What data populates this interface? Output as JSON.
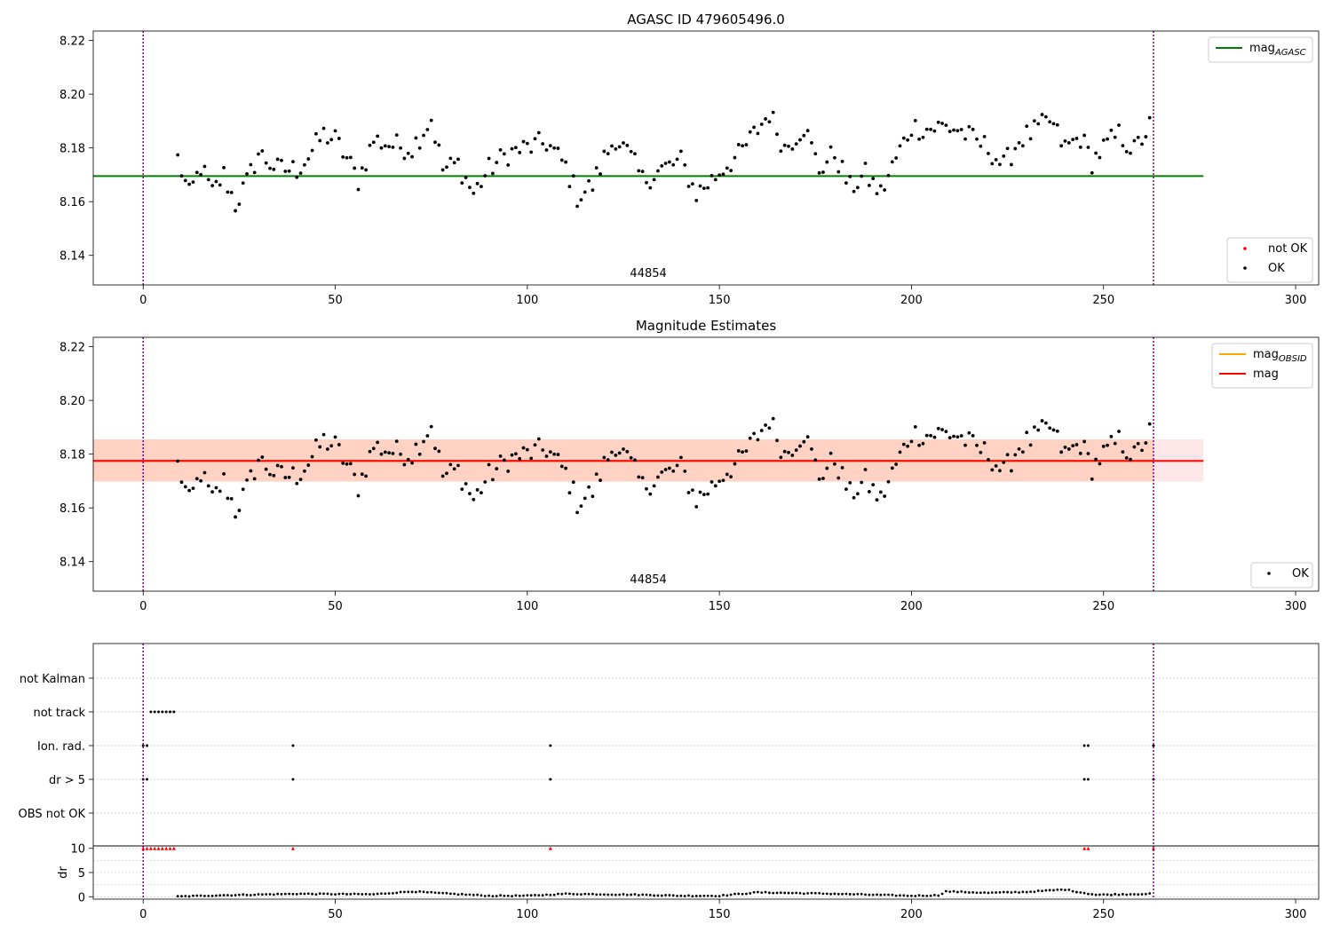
{
  "chart_data": [
    {
      "type": "scatter",
      "title": "AGASC ID 479605496.0",
      "xlim": [
        -13,
        306
      ],
      "ylim": [
        8.129,
        8.2235
      ],
      "x_ticks": [
        0,
        50,
        100,
        150,
        200,
        250,
        300
      ],
      "y_ticks": [
        8.14,
        8.16,
        8.18,
        8.2,
        8.22
      ],
      "y_tick_labels": [
        "8.14",
        "8.16",
        "8.18",
        "8.20",
        "8.22"
      ],
      "annotation": "44854",
      "vlines": [
        0,
        263
      ],
      "hline": {
        "name": "mag_AGASC",
        "value": 8.1695,
        "x_range": [
          -13,
          276
        ],
        "color": "#008000"
      },
      "legend_upper_right": [
        {
          "label": "mag",
          "sub": "AGASC",
          "color": "#008000"
        }
      ],
      "legend_lower_right": [
        {
          "label": "not OK",
          "color": "#ff0000"
        },
        {
          "label": "OK",
          "color": "#000000"
        }
      ],
      "series": [
        {
          "name": "OK",
          "color": "#000000",
          "x_range": [
            9,
            262
          ],
          "anchors": [
            [
              9,
              8.176
            ],
            [
              12,
              8.162
            ],
            [
              15,
              8.173
            ],
            [
              18,
              8.163
            ],
            [
              21,
              8.17
            ],
            [
              24,
              8.159
            ],
            [
              27,
              8.167
            ],
            [
              30,
              8.178
            ],
            [
              35,
              8.172
            ],
            [
              40,
              8.172
            ],
            [
              43,
              8.177
            ],
            [
              47,
              8.185
            ],
            [
              50,
              8.183
            ],
            [
              53,
              8.176
            ],
            [
              56,
              8.168
            ],
            [
              60,
              8.183
            ],
            [
              65,
              8.181
            ],
            [
              70,
              8.18
            ],
            [
              75,
              8.191
            ],
            [
              78,
              8.172
            ],
            [
              82,
              8.174
            ],
            [
              86,
              8.163
            ],
            [
              90,
              8.172
            ],
            [
              95,
              8.178
            ],
            [
              100,
              8.18
            ],
            [
              105,
              8.182
            ],
            [
              110,
              8.173
            ],
            [
              113,
              8.162
            ],
            [
              117,
              8.166
            ],
            [
              120,
              8.176
            ],
            [
              123,
              8.184
            ],
            [
              127,
              8.176
            ],
            [
              130,
              8.168
            ],
            [
              135,
              8.172
            ],
            [
              140,
              8.175
            ],
            [
              144,
              8.163
            ],
            [
              148,
              8.168
            ],
            [
              152,
              8.174
            ],
            [
              155,
              8.177
            ],
            [
              159,
              8.185
            ],
            [
              163,
              8.193
            ],
            [
              167,
              8.18
            ],
            [
              172,
              8.188
            ],
            [
              176,
              8.172
            ],
            [
              180,
              8.178
            ],
            [
              184,
              8.165
            ],
            [
              188,
              8.17
            ],
            [
              192,
              8.163
            ],
            [
              196,
              8.176
            ],
            [
              200,
              8.188
            ],
            [
              204,
              8.187
            ],
            [
              208,
              8.188
            ],
            [
              212,
              8.187
            ],
            [
              216,
              8.183
            ],
            [
              220,
              8.18
            ],
            [
              224,
              8.173
            ],
            [
              228,
              8.183
            ],
            [
              232,
              8.186
            ],
            [
              236,
              8.19
            ],
            [
              240,
              8.18
            ],
            [
              244,
              8.184
            ],
            [
              247,
              8.175
            ],
            [
              250,
              8.18
            ],
            [
              254,
              8.185
            ],
            [
              258,
              8.179
            ],
            [
              262,
              8.188
            ]
          ],
          "jitter": 0.0045
        }
      ]
    },
    {
      "type": "scatter",
      "title": "Magnitude Estimates",
      "xlim": [
        -13,
        306
      ],
      "ylim": [
        8.129,
        8.2235
      ],
      "x_ticks": [
        0,
        50,
        100,
        150,
        200,
        250,
        300
      ],
      "y_ticks": [
        8.14,
        8.16,
        8.18,
        8.2,
        8.22
      ],
      "y_tick_labels": [
        "8.14",
        "8.16",
        "8.18",
        "8.20",
        "8.22"
      ],
      "annotation": "44854",
      "vlines": [
        0,
        263
      ],
      "bands": [
        {
          "y_range": [
            8.1698,
            8.1855
          ],
          "x_range": [
            -13,
            276
          ],
          "color": "#ffb6c1"
        },
        {
          "y_range": [
            8.1698,
            8.1855
          ],
          "x_range": [
            -13,
            263
          ],
          "color": "#ffb38a"
        }
      ],
      "hlines": [
        {
          "name": "mag_OBSID",
          "value": 8.1775,
          "x_range": [
            -13,
            263
          ],
          "color": "#ffa500"
        },
        {
          "name": "mag",
          "value": 8.1775,
          "x_range": [
            -13,
            276
          ],
          "color": "#ff0000"
        }
      ],
      "legend_upper_right": [
        {
          "label": "mag",
          "sub": "OBSID",
          "color": "#ffa500"
        },
        {
          "label": "mag",
          "sub": "",
          "color": "#ff0000"
        }
      ],
      "legend_lower_right": [
        {
          "label": "OK",
          "color": "#000000"
        }
      ],
      "series": [
        {
          "name": "OK",
          "color": "#000000",
          "same_as_panel": 0
        }
      ]
    },
    {
      "type": "scatter",
      "xlim": [
        -13,
        306
      ],
      "x_ticks": [
        0,
        50,
        100,
        150,
        200,
        250,
        300
      ],
      "flags": [
        "not Kalman",
        "not track",
        "Ion. rad.",
        "dr > 5",
        "OBS not OK"
      ],
      "vlines": [
        0,
        263
      ],
      "flag_points": {
        "not Kalman": [],
        "not track": [
          2,
          3,
          4,
          5,
          6,
          7,
          8
        ],
        "Ion. rad.": [
          0,
          1,
          39,
          106,
          245,
          246,
          263
        ],
        "dr > 5": [
          0,
          1,
          39,
          106,
          245,
          246,
          263
        ],
        "OBS not OK": []
      }
    },
    {
      "type": "scatter",
      "xlim": [
        -13,
        306
      ],
      "ylim": [
        -0.5,
        10.5
      ],
      "ylabel": "dr",
      "y_ticks": [
        0,
        5,
        10
      ],
      "x_ticks": [
        0,
        50,
        100,
        150,
        200,
        250,
        300
      ],
      "vlines": [
        0,
        263
      ],
      "clipped_red_points_at_10": [
        0,
        1,
        2,
        3,
        4,
        5,
        6,
        7,
        8,
        39,
        106,
        245,
        246,
        263
      ],
      "series": [
        {
          "name": "dr",
          "color": "#000000",
          "x_range": [
            9,
            262
          ],
          "anchors": [
            [
              9,
              0.05
            ],
            [
              20,
              0.3
            ],
            [
              40,
              0.6
            ],
            [
              60,
              0.5
            ],
            [
              70,
              1.1
            ],
            [
              80,
              0.6
            ],
            [
              90,
              0.2
            ],
            [
              100,
              0.2
            ],
            [
              110,
              0.6
            ],
            [
              130,
              0.4
            ],
            [
              140,
              0.2
            ],
            [
              150,
              0.2
            ],
            [
              160,
              0.9
            ],
            [
              180,
              0.6
            ],
            [
              200,
              0.2
            ],
            [
              207,
              0.3
            ],
            [
              209,
              1.1
            ],
            [
              220,
              0.8
            ],
            [
              230,
              1.0
            ],
            [
              240,
              1.5
            ],
            [
              244,
              0.9
            ],
            [
              248,
              0.4
            ],
            [
              262,
              0.6
            ]
          ]
        }
      ]
    }
  ]
}
